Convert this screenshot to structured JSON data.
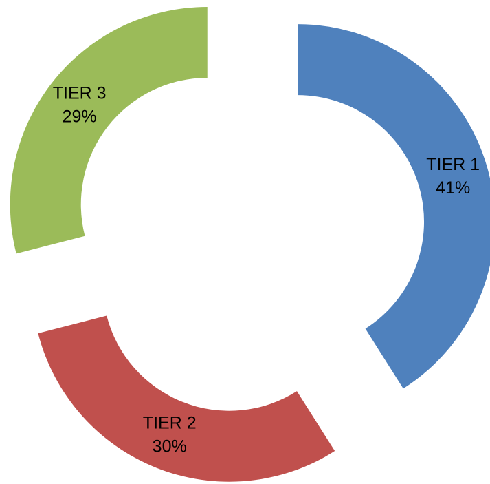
{
  "chart_data": {
    "type": "donut",
    "categories": [
      "TIER 1",
      "TIER 2",
      "TIER 3"
    ],
    "values": [
      41,
      30,
      29
    ],
    "value_labels": [
      "41%",
      "30%",
      "29%"
    ],
    "colors": [
      "#4f81bd",
      "#c0504d",
      "#9bbb59"
    ]
  }
}
